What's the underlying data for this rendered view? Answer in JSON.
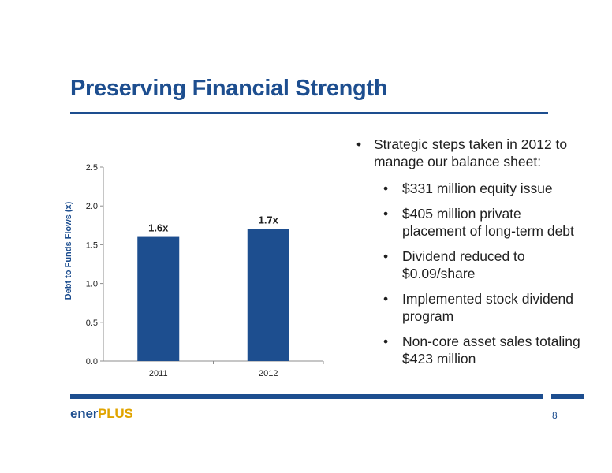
{
  "slide": {
    "title": "Preserving Financial Strength",
    "page_number": "8",
    "logo": {
      "part1": "ener",
      "part2": "PLUS"
    },
    "colors": {
      "brand_blue": "#1d4e8f",
      "accent_gold": "#e0a400"
    }
  },
  "bullets": {
    "main": "Strategic steps taken in 2012 to manage our balance sheet:",
    "sub": [
      "$331 million equity issue",
      "$405 million private placement of long-term debt",
      "Dividend reduced to $0.09/share",
      "Implemented stock dividend program",
      "Non-core asset sales totaling $423 million"
    ]
  },
  "chart_data": {
    "type": "bar",
    "categories": [
      "2011",
      "2012"
    ],
    "values": [
      1.6,
      1.7
    ],
    "data_labels": [
      "1.6x",
      "1.7x"
    ],
    "title": "",
    "xlabel": "",
    "ylabel": "Debt to Funds Flows (x)",
    "ylim": [
      0,
      2.5
    ],
    "yticks": [
      "0.0",
      "0.5",
      "1.0",
      "1.5",
      "2.0",
      "2.5"
    ],
    "grid": false,
    "bar_color": "#1d4e8f"
  }
}
